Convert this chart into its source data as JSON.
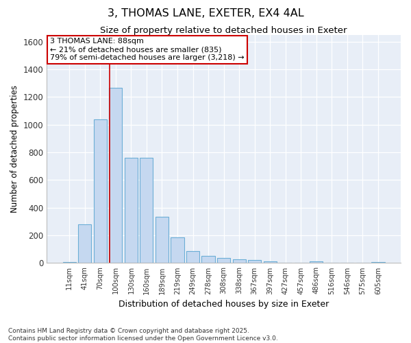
{
  "title1": "3, THOMAS LANE, EXETER, EX4 4AL",
  "title2": "Size of property relative to detached houses in Exeter",
  "xlabel": "Distribution of detached houses by size in Exeter",
  "ylabel": "Number of detached properties",
  "categories": [
    "11sqm",
    "41sqm",
    "70sqm",
    "100sqm",
    "130sqm",
    "160sqm",
    "189sqm",
    "219sqm",
    "249sqm",
    "278sqm",
    "308sqm",
    "338sqm",
    "367sqm",
    "397sqm",
    "427sqm",
    "457sqm",
    "486sqm",
    "516sqm",
    "546sqm",
    "575sqm",
    "605sqm"
  ],
  "values": [
    8,
    280,
    1040,
    1265,
    760,
    760,
    335,
    185,
    85,
    52,
    38,
    25,
    20,
    13,
    0,
    0,
    12,
    0,
    0,
    0,
    5
  ],
  "bar_color": "#c5d8f0",
  "bar_edge_color": "#6baed6",
  "plot_bg_color": "#e8eef7",
  "fig_bg_color": "#ffffff",
  "grid_color": "#ffffff",
  "annotation_text": "3 THOMAS LANE: 88sqm\n← 21% of detached houses are smaller (835)\n79% of semi-detached houses are larger (3,218) →",
  "annotation_box_facecolor": "#ffffff",
  "annotation_box_edgecolor": "#cc0000",
  "vline_color": "#cc0000",
  "ylim": [
    0,
    1650
  ],
  "yticks": [
    0,
    200,
    400,
    600,
    800,
    1000,
    1200,
    1400,
    1600
  ],
  "footer1": "Contains HM Land Registry data © Crown copyright and database right 2025.",
  "footer2": "Contains public sector information licensed under the Open Government Licence v3.0."
}
